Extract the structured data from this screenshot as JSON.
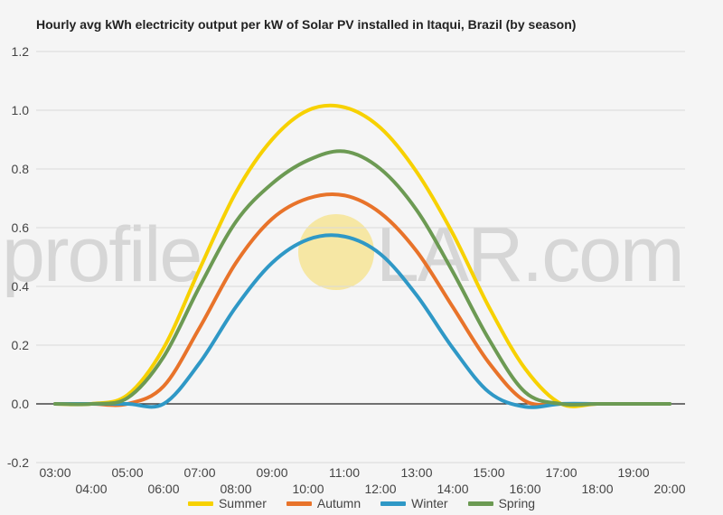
{
  "chart_data": {
    "type": "line",
    "title": "Hourly avg kWh electricity output per kW of Solar PV installed in Itaqui, Brazil (by season)",
    "xlabel": "",
    "ylabel": "",
    "ylim": [
      -0.2,
      1.2
    ],
    "yticks": [
      "-0.2",
      "0.0",
      "0.2",
      "0.4",
      "0.6",
      "0.8",
      "1.0",
      "1.2"
    ],
    "x": [
      "03:00",
      "04:00",
      "05:00",
      "06:00",
      "07:00",
      "08:00",
      "09:00",
      "10:00",
      "11:00",
      "12:00",
      "13:00",
      "14:00",
      "15:00",
      "16:00",
      "17:00",
      "18:00",
      "19:00",
      "20:00"
    ],
    "grid": true,
    "legend": "bottom",
    "series": [
      {
        "name": "Summer",
        "color": "#f7d100",
        "values": [
          0.0,
          0.0,
          0.03,
          0.19,
          0.46,
          0.72,
          0.9,
          1.0,
          1.01,
          0.94,
          0.79,
          0.58,
          0.33,
          0.12,
          0.0,
          0.0,
          0.0,
          0.0
        ]
      },
      {
        "name": "Autumn",
        "color": "#e8732a",
        "values": [
          0.0,
          0.0,
          0.0,
          0.06,
          0.26,
          0.48,
          0.63,
          0.7,
          0.71,
          0.65,
          0.52,
          0.33,
          0.14,
          0.01,
          0.0,
          0.0,
          0.0,
          0.0
        ]
      },
      {
        "name": "Winter",
        "color": "#2f98c6",
        "values": [
          0.0,
          0.0,
          0.0,
          0.0,
          0.14,
          0.33,
          0.48,
          0.56,
          0.57,
          0.51,
          0.37,
          0.19,
          0.04,
          -0.01,
          0.0,
          0.0,
          0.0,
          0.0
        ]
      },
      {
        "name": "Spring",
        "color": "#6c9a53",
        "values": [
          0.0,
          0.0,
          0.02,
          0.16,
          0.4,
          0.62,
          0.75,
          0.83,
          0.86,
          0.8,
          0.66,
          0.45,
          0.22,
          0.04,
          0.0,
          0.0,
          0.0,
          0.0
        ]
      }
    ]
  },
  "watermark": {
    "left": "profile",
    "right": "LAR.com",
    "sun_color": "#f6e7a4"
  }
}
